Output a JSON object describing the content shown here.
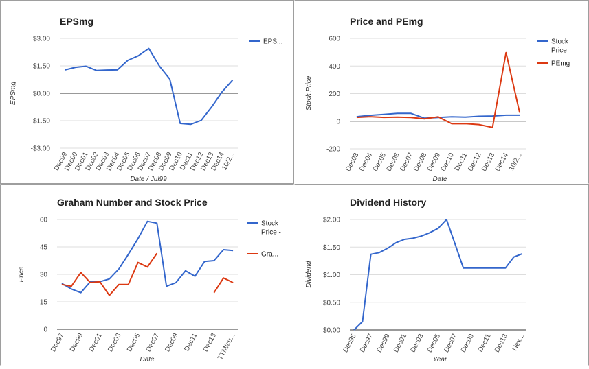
{
  "colors": {
    "stock": "#3366cc",
    "red": "#dc3912",
    "grid": "#dddddd"
  },
  "chart_data": [
    {
      "id": "eps",
      "type": "line",
      "title": "EPSmg",
      "xlabel": "Date / Jul99",
      "ylabel": "EPSmg",
      "ylim": [
        -3,
        3
      ],
      "yticks": [
        3,
        1.5,
        0,
        -1.5,
        -3
      ],
      "ytick_labels": [
        "$3.00",
        "$1.50",
        "$0.00",
        "-$1.50",
        "-$3.00"
      ],
      "zero_line": 0,
      "legend": "right",
      "categories": [
        "Dec99",
        "Dec00",
        "Dec01",
        "Dec02",
        "Dec03",
        "Dec04",
        "Dec05",
        "Dec06",
        "Dec07",
        "Dec08",
        "Dec09",
        "Dec10",
        "Dec11",
        "Dec12",
        "Dec13",
        "Dec14",
        "10/2..."
      ],
      "series": [
        {
          "name": "EPS...",
          "color": "#3366cc",
          "values": [
            1.28,
            1.42,
            1.48,
            1.25,
            1.27,
            1.28,
            1.8,
            2.05,
            2.45,
            1.5,
            0.78,
            -1.65,
            -1.7,
            -1.48,
            -0.75,
            0.08,
            0.72
          ]
        }
      ]
    },
    {
      "id": "price_pe",
      "type": "line",
      "title": "Price and PEmg",
      "xlabel": "Date",
      "ylabel": "Stock Price",
      "ylim": [
        -200,
        600
      ],
      "yticks": [
        600,
        400,
        200,
        0,
        -200
      ],
      "ytick_labels": [
        "600",
        "400",
        "200",
        "0",
        "-200"
      ],
      "zero_line": 0,
      "legend": "right",
      "categories": [
        "Dec03",
        "Dec04",
        "Dec05",
        "Dec06",
        "Dec07",
        "Dec08",
        "Dec09",
        "Dec10",
        "Dec11",
        "Dec12",
        "Dec13",
        "Dec14",
        "10/2..."
      ],
      "series": [
        {
          "name": "Stock Price",
          "legend_lines": [
            "Stock",
            "Price"
          ],
          "color": "#3366cc",
          "values": [
            33,
            43,
            50,
            57,
            57,
            22,
            27,
            32,
            30,
            36,
            38,
            44,
            44
          ]
        },
        {
          "name": "PEmg",
          "legend_lines": [
            "PEmg"
          ],
          "color": "#dc3912",
          "values": [
            28,
            33,
            28,
            30,
            27,
            17,
            32,
            -18,
            -17,
            -24,
            -45,
            497,
            62
          ]
        }
      ]
    },
    {
      "id": "graham",
      "type": "line",
      "title": "Graham Number and Stock Price",
      "xlabel": "Date",
      "ylabel": "Price",
      "ylim": [
        0,
        60
      ],
      "yticks": [
        60,
        45,
        30,
        15,
        0
      ],
      "ytick_labels": [
        "60",
        "45",
        "30",
        "15",
        "0"
      ],
      "legend": "right",
      "categories": [
        "Dec97",
        "",
        "Dec99",
        "",
        "Dec01",
        "",
        "Dec03",
        "",
        "Dec05",
        "",
        "Dec07",
        "",
        "Dec09",
        "",
        "Dec11",
        "",
        "Dec13",
        "",
        "TTM/cu..."
      ],
      "series": [
        {
          "name": "Stock Price -",
          "legend_lines": [
            "Stock",
            "Price -",
            "-"
          ],
          "color": "#3366cc",
          "values": [
            25,
            22,
            20,
            26,
            26,
            27.5,
            33,
            41,
            49.5,
            59,
            58,
            23.5,
            25.5,
            32,
            29,
            37,
            37.5,
            43.5,
            43
          ]
        },
        {
          "name": "Gra...",
          "legend_lines": [
            "Gra..."
          ],
          "color": "#dc3912",
          "values": [
            24.5,
            23.5,
            31,
            25.5,
            26,
            18.5,
            24.5,
            24.5,
            36.5,
            34,
            41.5,
            null,
            null,
            null,
            null,
            null,
            20,
            28,
            25.5
          ]
        }
      ]
    },
    {
      "id": "dividend",
      "type": "line",
      "title": "Dividend History",
      "xlabel": "Year",
      "ylabel": "Dividend",
      "ylim": [
        0,
        2
      ],
      "yticks": [
        2,
        1.5,
        1,
        0.5,
        0
      ],
      "ytick_labels": [
        "$2.00",
        "$1.50",
        "$1.00",
        "$0.50",
        "$0.00"
      ],
      "legend": "none",
      "categories": [
        "Dec95",
        "",
        "Dec97",
        "",
        "Dec99",
        "",
        "Dec01",
        "",
        "Dec03",
        "",
        "Dec05",
        "",
        "Dec07",
        "",
        "Dec09",
        "",
        "Dec11",
        "",
        "Dec13",
        "",
        "Nex..."
      ],
      "series": [
        {
          "name": "",
          "color": "#3366cc",
          "values": [
            0.0,
            0.15,
            1.37,
            1.4,
            1.48,
            1.58,
            1.64,
            1.66,
            1.7,
            1.76,
            1.84,
            2.0,
            1.56,
            1.12,
            1.12,
            1.12,
            1.12,
            1.12,
            1.12,
            1.32,
            1.38
          ]
        }
      ]
    }
  ]
}
